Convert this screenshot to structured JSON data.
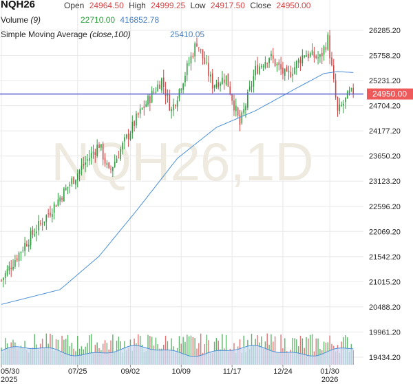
{
  "header": {
    "symbol": "NQH26",
    "open_label": "Open",
    "open_value": "24964.50",
    "high_label": "High",
    "high_value": "24999.25",
    "low_label": "Low",
    "low_value": "24917.50",
    "close_label": "Close",
    "close_value": "24950.00",
    "volume_label": "Volume",
    "volume_param": "(9)",
    "volume_value": "22710.00",
    "volume_ma_value": "416852.78",
    "sma_label": "Simple Moving Average",
    "sma_param": "(close,100)",
    "sma_value": "25410.05"
  },
  "watermark": "NQH26,1D",
  "colors": {
    "up": "#2a9d3a",
    "down": "#d64545",
    "neutral": "#111111",
    "sma": "#4a8fd6",
    "hline": "#5a5fcf",
    "price_tag": "#ee5a5a",
    "volume_fill": "#cfdcf5",
    "volume_line": "#4a8fd6",
    "grid": "#e8e8e8"
  },
  "chart_data": {
    "type": "candlestick",
    "price_axis": {
      "min": 19434.2,
      "max": 26285.2,
      "ticks": [
        "26285.20",
        "25758.20",
        "25231.20",
        "24704.20",
        "24177.20",
        "23650.20",
        "23123.20",
        "22596.20",
        "22069.20",
        "21542.20",
        "21015.20",
        "20488.20",
        "19961.20",
        "19434.20"
      ]
    },
    "x_axis": {
      "ticks": [
        {
          "label": "05/30",
          "sub": "2025",
          "index": 0
        },
        {
          "label": "07/25",
          "sub": "",
          "index": 39
        },
        {
          "label": "09/02",
          "sub": "",
          "index": 66
        },
        {
          "label": "10/09",
          "sub": "",
          "index": 92
        },
        {
          "label": "11/17",
          "sub": "",
          "index": 118
        },
        {
          "label": "12/24",
          "sub": "",
          "index": 144
        },
        {
          "label": "01/30",
          "sub": "2026",
          "index": 168
        }
      ]
    },
    "last_price": 24950.0,
    "horizontal_line": 24950.0,
    "key_closes": [
      {
        "index": 0,
        "close": 21050
      },
      {
        "index": 12,
        "close": 21800
      },
      {
        "index": 25,
        "close": 22500
      },
      {
        "index": 40,
        "close": 23350
      },
      {
        "index": 50,
        "close": 23900
      },
      {
        "index": 55,
        "close": 23300
      },
      {
        "index": 70,
        "close": 24500
      },
      {
        "index": 82,
        "close": 25250
      },
      {
        "index": 87,
        "close": 24600
      },
      {
        "index": 100,
        "close": 26050
      },
      {
        "index": 108,
        "close": 25150
      },
      {
        "index": 115,
        "close": 25300
      },
      {
        "index": 122,
        "close": 24300
      },
      {
        "index": 130,
        "close": 25450
      },
      {
        "index": 137,
        "close": 25750
      },
      {
        "index": 146,
        "close": 25300
      },
      {
        "index": 155,
        "close": 25800
      },
      {
        "index": 163,
        "close": 25700
      },
      {
        "index": 167,
        "close": 26100
      },
      {
        "index": 172,
        "close": 24550
      },
      {
        "index": 178,
        "close": 24950
      }
    ],
    "sma_points": [
      {
        "index": 0,
        "value": 20540
      },
      {
        "index": 30,
        "value": 20850
      },
      {
        "index": 50,
        "value": 21550
      },
      {
        "index": 70,
        "value": 22550
      },
      {
        "index": 90,
        "value": 23600
      },
      {
        "index": 110,
        "value": 24250
      },
      {
        "index": 130,
        "value": 24600
      },
      {
        "index": 150,
        "value": 25050
      },
      {
        "index": 165,
        "value": 25380
      },
      {
        "index": 172,
        "value": 25420
      },
      {
        "index": 180,
        "value": 25400
      }
    ]
  }
}
